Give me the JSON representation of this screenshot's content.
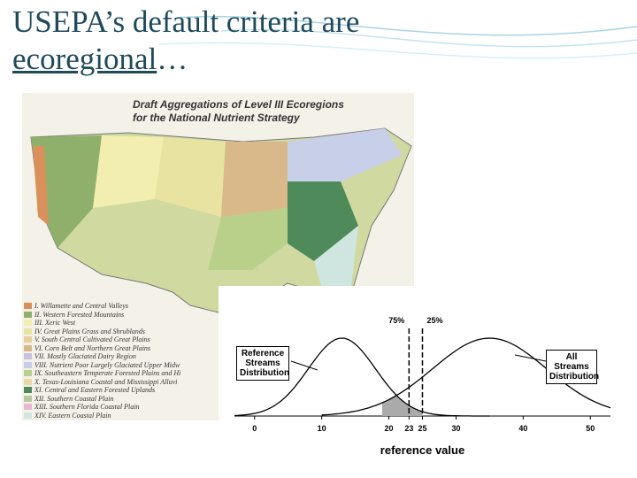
{
  "slide": {
    "title": {
      "line1": "USEPA’s default criteria are",
      "link": "ecoregional",
      "ellipsis": "…"
    }
  },
  "map": {
    "title": [
      "Draft Aggregations of Level III Ecoregions",
      "for the National Nutrient Strategy"
    ],
    "legend": [
      {
        "label": "I. Willamette and Central Valleys",
        "color": "#d9905a"
      },
      {
        "label": "II. Western Forested Mountains",
        "color": "#8fb06a"
      },
      {
        "label": "III. Xeric West",
        "color": "#f2eeb0"
      },
      {
        "label": "IV. Great Plains Grass and Shrublands",
        "color": "#e8e3a0"
      },
      {
        "label": "V. South Central Cultivated Great Plains",
        "color": "#e6cf9a"
      },
      {
        "label": "VI. Corn Belt and Northern Great Plains",
        "color": "#d9b98a"
      },
      {
        "label": "VII. Mostly Glaciated Dairy Region",
        "color": "#c9c2dc"
      },
      {
        "label": "VIII. Nutrient Poor Largely Glaciated Upper Midw",
        "color": "#c8cfe8"
      },
      {
        "label": "IX. Southeastern Temperate Forested Plains and Hi",
        "color": "#b9d08a"
      },
      {
        "label": "X. Texas-Louisiana Coastal and Mississippi Alluvi",
        "color": "#e8d8a8"
      },
      {
        "label": "XI. Central and Eastern Forested Uplands",
        "color": "#4f8a5a"
      },
      {
        "label": "XII. Southern Coastal Plain",
        "color": "#b8c8a0"
      },
      {
        "label": "XIII. Southern Florida Coastal Plain",
        "color": "#e8b8d0"
      },
      {
        "label": "XIV. Eastern Coastal Plain",
        "color": "#cfe6e0"
      }
    ]
  },
  "chart_data": {
    "type": "density",
    "xlabel": "reference value",
    "xlim": [
      -3,
      53
    ],
    "xticks": [
      0,
      10,
      20,
      23,
      25,
      30,
      40,
      50
    ],
    "percentiles": [
      {
        "label": "75%",
        "x": 23
      },
      {
        "label": "25%",
        "x": 25
      }
    ],
    "series": [
      {
        "name": "Reference Streams Distribution"
      },
      {
        "name": "All Streams Distribution"
      }
    ]
  }
}
